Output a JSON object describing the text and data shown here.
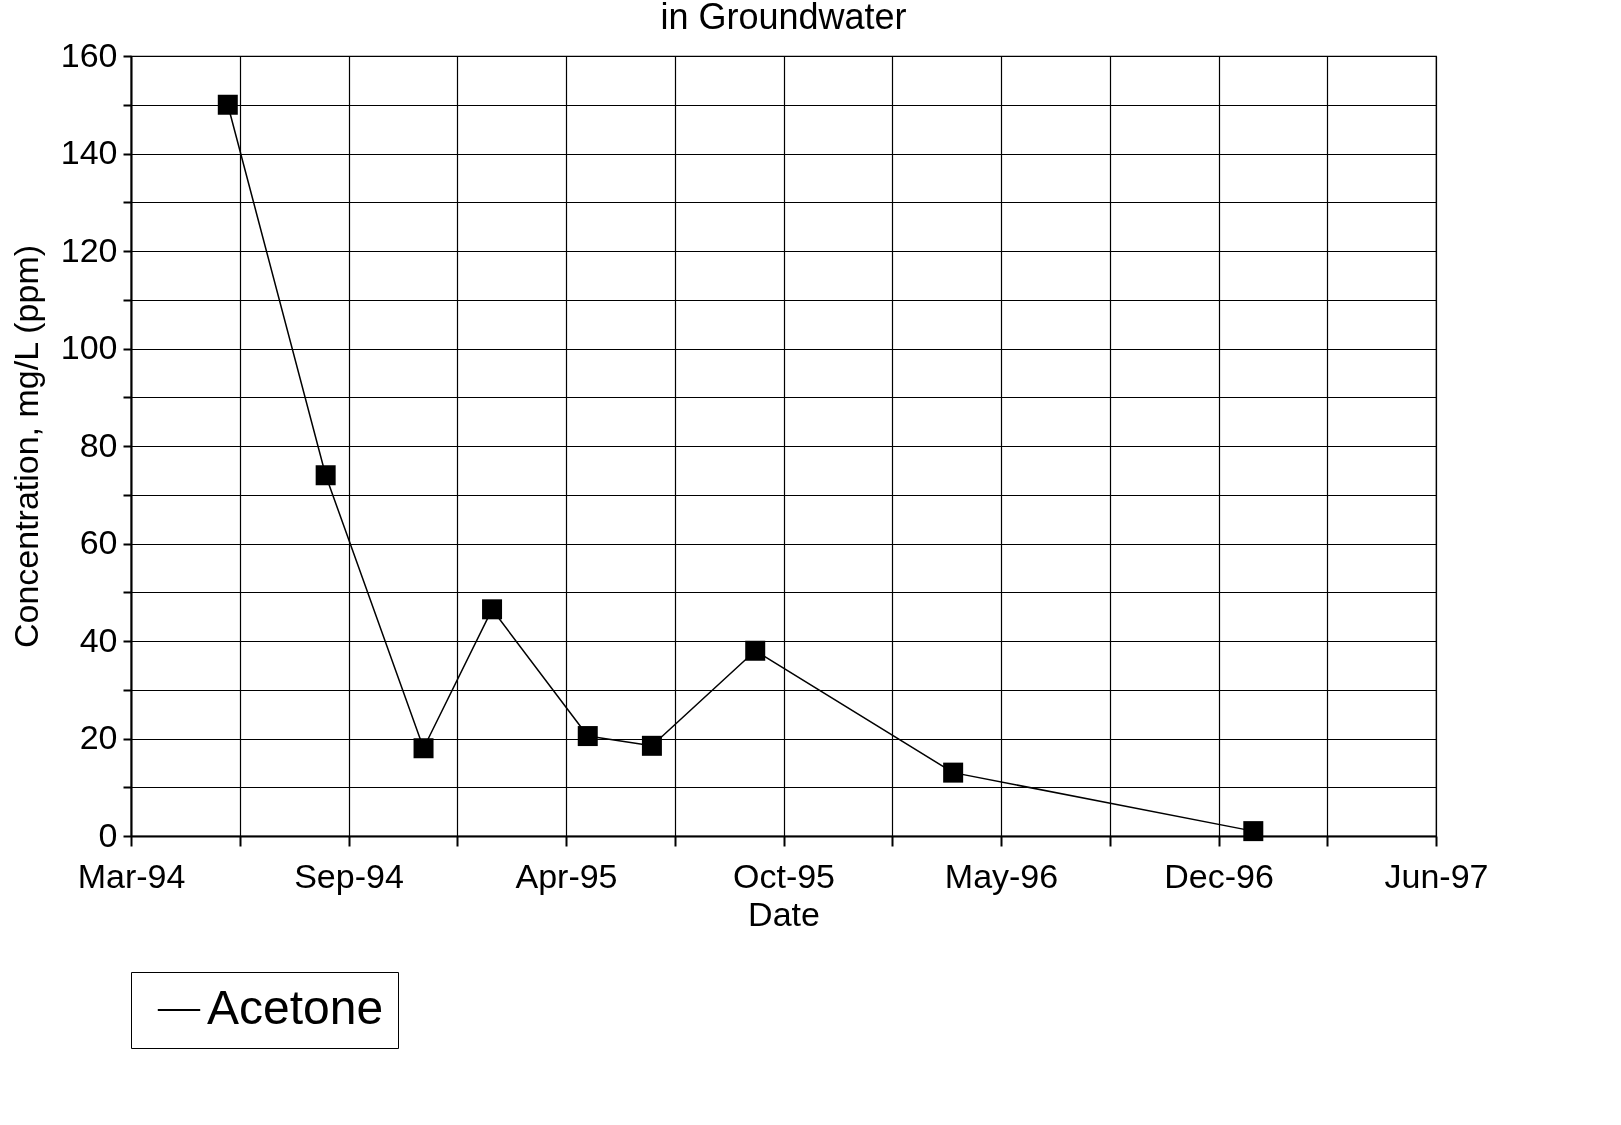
{
  "chart_data": {
    "type": "line",
    "title": "in Groundwater",
    "xlabel": "Date",
    "ylabel": "Concentration, mg/L (ppm)",
    "x": [
      "1994-06-06",
      "1994-09-04",
      "1994-12-03",
      "1995-02-04",
      "1995-05-03",
      "1995-07-01",
      "1995-10-04",
      "1996-04-03",
      "1997-01-04"
    ],
    "series": [
      {
        "name": "Acetone",
        "color": "#000000",
        "values": [
          150,
          74,
          18,
          46.5,
          20.5,
          18.5,
          38,
          13,
          1
        ]
      }
    ],
    "xlim": [
      "1994-03-09",
      "1997-06-21"
    ],
    "xticks": [
      {
        "value": "1994-03-09",
        "label": "Mar-94"
      },
      {
        "value": "1994-06-17",
        "label": null
      },
      {
        "value": "1994-09-25",
        "label": "Sep-94"
      },
      {
        "value": "1995-01-03",
        "label": null
      },
      {
        "value": "1995-04-13",
        "label": "Apr-95"
      },
      {
        "value": "1995-07-22",
        "label": null
      },
      {
        "value": "1995-10-30",
        "label": "Oct-95"
      },
      {
        "value": "1996-02-07",
        "label": null
      },
      {
        "value": "1996-05-17",
        "label": "May-96"
      },
      {
        "value": "1996-08-25",
        "label": null
      },
      {
        "value": "1996-12-03",
        "label": "Dec-96"
      },
      {
        "value": "1997-03-13",
        "label": null
      },
      {
        "value": "1997-06-21",
        "label": "Jun-97"
      }
    ],
    "ylim": [
      0,
      160
    ],
    "yticks": [
      0,
      {
        "value": 10,
        "label": null
      },
      20,
      {
        "value": 30,
        "label": null
      },
      40,
      {
        "value": 50,
        "label": null
      },
      60,
      {
        "value": 70,
        "label": null
      },
      80,
      {
        "value": 90,
        "label": null
      },
      100,
      {
        "value": 110,
        "label": null
      },
      120,
      {
        "value": 130,
        "label": null
      },
      140,
      {
        "value": 150,
        "label": null
      },
      160
    ],
    "grid": true,
    "legend": "bottom",
    "marker": "square",
    "line_style": "solid"
  }
}
